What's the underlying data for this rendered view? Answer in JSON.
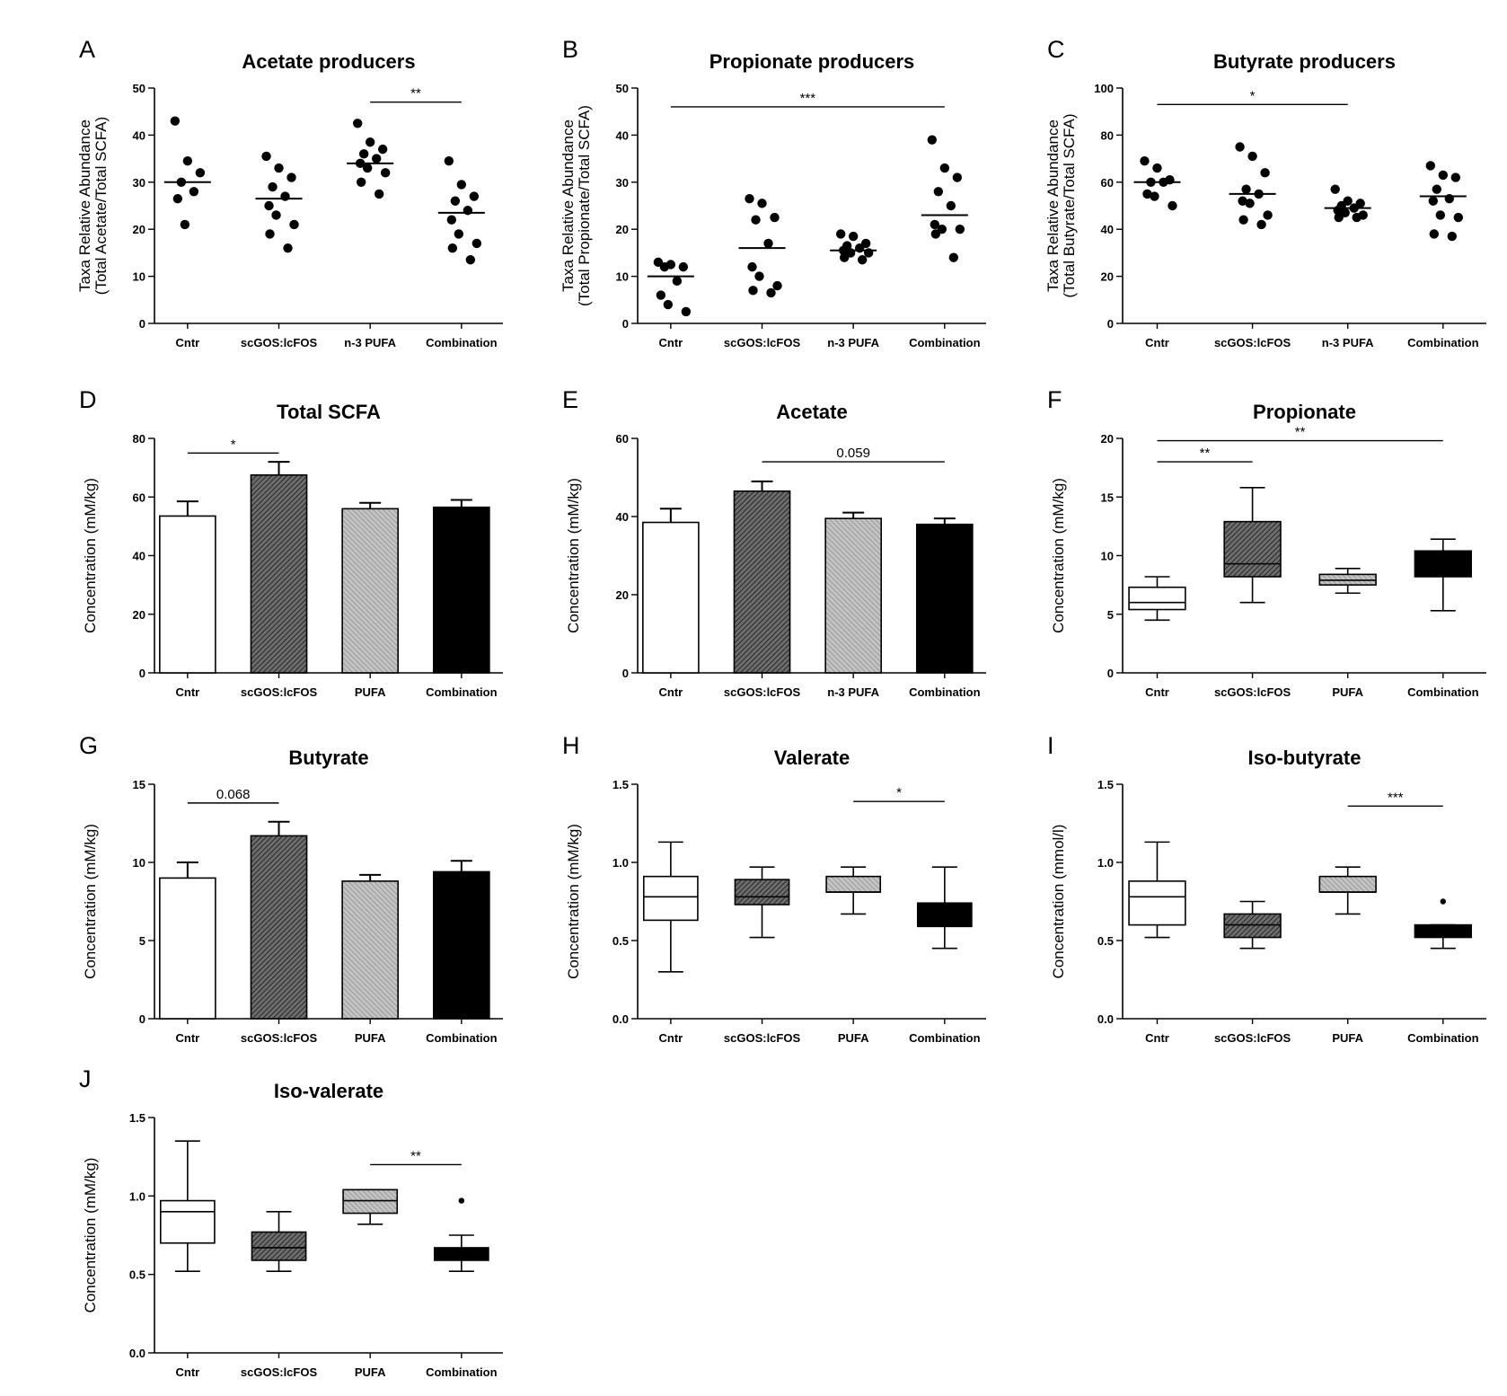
{
  "chart_data": [
    {
      "id": "A",
      "type": "scatter",
      "title": "Acetate producers",
      "ylabel": [
        "Taxa Relative Abundance",
        "(Total Acetate/Total SCFA)"
      ],
      "categories": [
        "Cntr",
        "scGOS:lcFOS",
        "n-3 PUFA",
        "Combination"
      ],
      "ylim": [
        0,
        50
      ],
      "yticks": [
        0,
        10,
        20,
        30,
        40,
        50
      ],
      "points": [
        [
          43,
          34.5,
          32,
          30,
          28,
          26.5,
          21
        ],
        [
          35.5,
          33,
          31,
          29,
          27,
          25,
          23,
          21,
          19,
          16
        ],
        [
          42.5,
          38.5,
          37,
          36,
          35,
          34,
          33,
          32,
          30,
          27.5
        ],
        [
          34.5,
          29.5,
          27,
          26,
          24,
          22,
          19,
          17,
          16,
          13.5
        ]
      ],
      "center_lines": [
        30,
        26.5,
        34,
        23.5
      ],
      "significance": [
        {
          "from": 2,
          "to": 3,
          "y": 47,
          "label": "**"
        }
      ]
    },
    {
      "id": "B",
      "type": "scatter",
      "title": "Propionate producers",
      "ylabel": [
        "Taxa Relative Abundance",
        "(Total Propionate/Total SCFA)"
      ],
      "categories": [
        "Cntr",
        "scGOS:lcFOS",
        "n-3 PUFA",
        "Combination"
      ],
      "ylim": [
        0,
        50
      ],
      "yticks": [
        0,
        10,
        20,
        30,
        40,
        50
      ],
      "points": [
        [
          13,
          12.5,
          12,
          12,
          9,
          6,
          4,
          2.5
        ],
        [
          26.5,
          25.5,
          22.5,
          22,
          17,
          12,
          10,
          8,
          7,
          6.5
        ],
        [
          19,
          18.5,
          17,
          16.5,
          16,
          15.5,
          15,
          15,
          14,
          13.5
        ],
        [
          39,
          33,
          31,
          28,
          25,
          21,
          20,
          20,
          19,
          14
        ]
      ],
      "center_lines": [
        10,
        16,
        15.5,
        23
      ],
      "significance": [
        {
          "from": 0,
          "to": 3,
          "y": 46,
          "label": "***"
        }
      ]
    },
    {
      "id": "C",
      "type": "scatter",
      "title": "Butyrate producers",
      "ylabel": [
        "Taxa Relative Abundance",
        "(Total Butyrate/Total SCFA)"
      ],
      "categories": [
        "Cntr",
        "scGOS:lcFOS",
        "n-3 PUFA",
        "Combination"
      ],
      "ylim": [
        0,
        100
      ],
      "yticks": [
        0,
        20,
        40,
        60,
        80,
        100
      ],
      "points": [
        [
          69,
          66,
          61,
          60,
          60,
          55,
          54,
          50
        ],
        [
          75,
          71,
          64,
          57,
          55,
          52,
          51,
          46,
          44,
          42
        ],
        [
          57,
          52,
          51,
          50,
          49,
          48,
          47,
          46,
          45,
          45
        ],
        [
          67,
          63,
          62,
          57,
          53,
          52,
          46,
          45,
          38,
          37
        ]
      ],
      "center_lines": [
        60,
        55,
        49,
        54
      ],
      "significance": [
        {
          "from": 0,
          "to": 2,
          "y": 93,
          "label": "*"
        }
      ]
    },
    {
      "id": "D",
      "type": "bar",
      "title": "Total SCFA",
      "ylabel": [
        "Concentration (mM/kg)"
      ],
      "categories": [
        "Cntr",
        "scGOS:lcFOS",
        "PUFA",
        "Combination"
      ],
      "ylim": [
        0,
        80
      ],
      "yticks": [
        0,
        20,
        40,
        60,
        80
      ],
      "values": [
        53.5,
        67.5,
        56,
        56.5
      ],
      "errors": [
        5,
        4.5,
        2,
        2.5
      ],
      "significance": [
        {
          "from": 0,
          "to": 1,
          "y": 75,
          "label": "*"
        }
      ]
    },
    {
      "id": "E",
      "type": "bar",
      "title": "Acetate",
      "ylabel": [
        "Concentration (mM/kg)"
      ],
      "categories": [
        "Cntr",
        "scGOS:lcFOS",
        "n-3 PUFA",
        "Combination"
      ],
      "ylim": [
        0,
        60
      ],
      "yticks": [
        0,
        20,
        40,
        60
      ],
      "values": [
        38.5,
        46.5,
        39.5,
        38
      ],
      "errors": [
        3.5,
        2.5,
        1.5,
        1.5
      ],
      "significance": [
        {
          "from": 1,
          "to": 3,
          "y": 54,
          "label": "0.059"
        }
      ]
    },
    {
      "id": "F",
      "type": "box",
      "title": "Propionate",
      "ylabel": [
        "Concentration (mM/kg)"
      ],
      "categories": [
        "Cntr",
        "scGOS:lcFOS",
        "PUFA",
        "Combination"
      ],
      "ylim": [
        0,
        20
      ],
      "yticks": [
        0,
        5,
        10,
        15,
        20
      ],
      "boxes": [
        {
          "min": 4.5,
          "q1": 5.4,
          "median": 6.0,
          "q3": 7.3,
          "max": 8.2
        },
        {
          "min": 6.0,
          "q1": 8.2,
          "median": 9.3,
          "q3": 12.9,
          "max": 15.8
        },
        {
          "min": 6.8,
          "q1": 7.5,
          "median": 7.9,
          "q3": 8.4,
          "max": 8.9
        },
        {
          "min": 5.3,
          "q1": 8.2,
          "median": 8.5,
          "q3": 10.4,
          "max": 11.4
        }
      ],
      "significance": [
        {
          "from": 0,
          "to": 1,
          "y": 18,
          "label": "**"
        },
        {
          "from": 0,
          "to": 3,
          "y": 19.8,
          "label": "**"
        }
      ]
    },
    {
      "id": "G",
      "type": "bar",
      "title": "Butyrate",
      "ylabel": [
        "Concentration (mM/kg)"
      ],
      "categories": [
        "Cntr",
        "scGOS:lcFOS",
        "PUFA",
        "Combination"
      ],
      "ylim": [
        0,
        15
      ],
      "yticks": [
        0,
        5,
        10,
        15
      ],
      "values": [
        9,
        11.7,
        8.8,
        9.4
      ],
      "errors": [
        1,
        0.9,
        0.4,
        0.7
      ],
      "significance": [
        {
          "from": 0,
          "to": 1,
          "y": 13.8,
          "label": "0.068"
        }
      ]
    },
    {
      "id": "H",
      "type": "box",
      "title": "Valerate",
      "ylabel": [
        "Concentration (mM/kg)"
      ],
      "categories": [
        "Cntr",
        "scGOS:lcFOS",
        "PUFA",
        "Combination"
      ],
      "ylim": [
        0,
        1.5
      ],
      "yticks": [
        "0.0",
        "0.5",
        "1.0",
        "1.5"
      ],
      "boxes": [
        {
          "min": 0.3,
          "q1": 0.63,
          "median": 0.78,
          "q3": 0.91,
          "max": 1.13
        },
        {
          "min": 0.52,
          "q1": 0.73,
          "median": 0.78,
          "q3": 0.89,
          "max": 0.97
        },
        {
          "min": 0.67,
          "q1": 0.81,
          "median": 0.81,
          "q3": 0.91,
          "max": 0.97
        },
        {
          "min": 0.45,
          "q1": 0.59,
          "median": 0.6,
          "q3": 0.74,
          "max": 0.97
        }
      ],
      "significance": [
        {
          "from": 2,
          "to": 3,
          "y": 1.39,
          "label": "*"
        }
      ]
    },
    {
      "id": "I",
      "type": "box",
      "title": "Iso-butyrate",
      "ylabel": [
        "Concentration (mmol/l)"
      ],
      "categories": [
        "Cntr",
        "scGOS:lcFOS",
        "PUFA",
        "Combination"
      ],
      "ylim": [
        0,
        1.5
      ],
      "yticks": [
        "0.0",
        "0.5",
        "1.0",
        "1.5"
      ],
      "boxes": [
        {
          "min": 0.52,
          "q1": 0.6,
          "median": 0.78,
          "q3": 0.88,
          "max": 1.13
        },
        {
          "min": 0.45,
          "q1": 0.52,
          "median": 0.6,
          "q3": 0.67,
          "max": 0.75
        },
        {
          "min": 0.67,
          "q1": 0.81,
          "median": 0.81,
          "q3": 0.91,
          "max": 0.97
        },
        {
          "min": 0.45,
          "q1": 0.52,
          "median": 0.53,
          "q3": 0.6,
          "max": 0.6,
          "outliers": [
            0.75
          ]
        }
      ],
      "significance": [
        {
          "from": 2,
          "to": 3,
          "y": 1.36,
          "label": "***"
        }
      ]
    },
    {
      "id": "J",
      "type": "box",
      "title": "Iso-valerate",
      "ylabel": [
        "Concentration (mM/kg)"
      ],
      "categories": [
        "Cntr",
        "scGOS:lcFOS",
        "PUFA",
        "Combination"
      ],
      "ylim": [
        0,
        1.5
      ],
      "yticks": [
        "0.0",
        "0.5",
        "1.0",
        "1.5"
      ],
      "boxes": [
        {
          "min": 0.52,
          "q1": 0.7,
          "median": 0.9,
          "q3": 0.97,
          "max": 1.35
        },
        {
          "min": 0.52,
          "q1": 0.59,
          "median": 0.67,
          "q3": 0.77,
          "max": 0.9
        },
        {
          "min": 0.82,
          "q1": 0.89,
          "median": 0.97,
          "q3": 1.04,
          "max": 1.04
        },
        {
          "min": 0.52,
          "q1": 0.59,
          "median": 0.6,
          "q3": 0.67,
          "max": 0.75,
          "outliers": [
            0.97
          ]
        }
      ],
      "significance": [
        {
          "from": 2,
          "to": 3,
          "y": 1.2,
          "label": "**"
        }
      ]
    }
  ]
}
